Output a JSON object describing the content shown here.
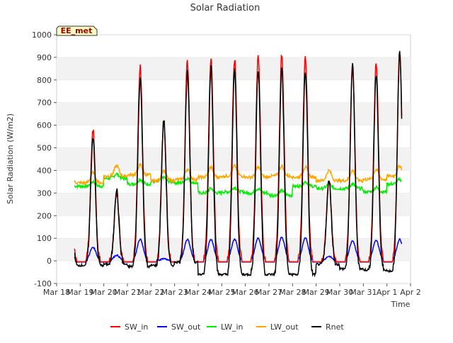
{
  "chart_data": {
    "type": "line",
    "title": "Solar Radiation",
    "station_label": "EE_met",
    "xlabel": "Time",
    "ylabel": "Solar Radiation (W/m2)",
    "ylim": [
      -100,
      1000
    ],
    "yticks": [
      -100,
      0,
      100,
      200,
      300,
      400,
      500,
      600,
      700,
      800,
      900,
      1000
    ],
    "xlim_days": [
      0,
      15
    ],
    "xtick_labels": [
      "Mar 18",
      "Mar 19",
      "Mar 20",
      "Mar 21",
      "Mar 22",
      "Mar 23",
      "Mar 24",
      "Mar 25",
      "Mar 26",
      "Mar 27",
      "Mar 28",
      "Mar 29",
      "Mar 30",
      "Mar 31",
      "Apr 1",
      "Apr 2"
    ],
    "grid": "horizontal bands",
    "legend_placement": "bottom",
    "series": [
      {
        "name": "SW_in",
        "color": "#ff0000",
        "daily_peak": [
          580,
          300,
          865,
          620,
          885,
          905,
          895,
          905,
          915,
          900,
          360,
          865,
          870,
          920
        ]
      },
      {
        "name": "SW_out",
        "color": "#0000ff",
        "daily_peak": [
          60,
          25,
          95,
          10,
          95,
          95,
          95,
          100,
          105,
          100,
          20,
          90,
          90,
          95
        ]
      },
      {
        "name": "LW_in",
        "color": "#00ee00",
        "daily_mean": [
          330,
          365,
          340,
          350,
          345,
          300,
          305,
          300,
          290,
          330,
          320,
          320,
          305,
          340
        ]
      },
      {
        "name": "LW_out",
        "color": "#ffa500",
        "daily_mean": [
          345,
          375,
          380,
          355,
          360,
          370,
          375,
          370,
          375,
          370,
          355,
          355,
          360,
          375
        ]
      },
      {
        "name": "Rnet",
        "color": "#000000",
        "daily_peak": [
          550,
          315,
          810,
          620,
          830,
          860,
          840,
          845,
          855,
          840,
          355,
          860,
          820,
          920
        ],
        "night_level": [
          -20,
          -15,
          -25,
          -20,
          -5,
          -60,
          -60,
          -60,
          -60,
          -60,
          -15,
          -35,
          -40,
          -45
        ]
      }
    ]
  }
}
